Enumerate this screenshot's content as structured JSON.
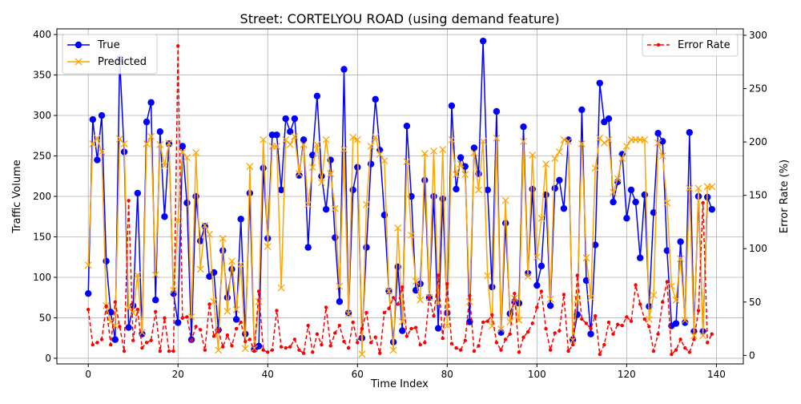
{
  "chart_data": {
    "type": "line",
    "title": "Street: CORTELYOU ROAD (using demand feature)",
    "xlabel": "Time Index",
    "ylabel": "Traffic Volume",
    "y2label": "Error Rate (%)",
    "xlim": [
      -7,
      146
    ],
    "ylim": [
      -7,
      407
    ],
    "y2lim": [
      -8,
      306
    ],
    "xticks": [
      0,
      20,
      40,
      60,
      80,
      100,
      120,
      140
    ],
    "yticks": [
      0,
      50,
      100,
      150,
      200,
      250,
      300,
      350,
      400
    ],
    "y2ticks": [
      0,
      50,
      100,
      150,
      200,
      250,
      300
    ],
    "grid": true,
    "legend_left_position": "upper-left",
    "legend_right_position": "upper-right",
    "colors": {
      "true": "#0000ff",
      "predicted": "#ffa500",
      "error": "#ff0000",
      "grid": "#b0b0b0"
    },
    "series": [
      {
        "name": "True",
        "axis": "left",
        "color": "#0000ff",
        "marker": "circle",
        "values": [
          80,
          295,
          245,
          300,
          120,
          57,
          23,
          370,
          255,
          38,
          65,
          204,
          30,
          292,
          316,
          72,
          280,
          175,
          265,
          80,
          44,
          262,
          192,
          23,
          200,
          145,
          163,
          101,
          106,
          35,
          133,
          75,
          110,
          48,
          172,
          30,
          204,
          11,
          15,
          235,
          148,
          276,
          276,
          208,
          296,
          280,
          296,
          226,
          270,
          137,
          251,
          324,
          225,
          184,
          245,
          149,
          70,
          357,
          56,
          208,
          236,
          25,
          137,
          240,
          320,
          257,
          177,
          83,
          20,
          113,
          34,
          287,
          200,
          84,
          92,
          220,
          75,
          200,
          37,
          197,
          56,
          312,
          209,
          248,
          237,
          45,
          260,
          228,
          392,
          208,
          88,
          305,
          32,
          167,
          55,
          70,
          68,
          286,
          105,
          209,
          90,
          114,
          202,
          65,
          210,
          220,
          185,
          270,
          23,
          54,
          307,
          96,
          30,
          140,
          340,
          292,
          296,
          193,
          218,
          252,
          173,
          208,
          193,
          124,
          202,
          64,
          180,
          278,
          268,
          133,
          40,
          43,
          144,
          44,
          279,
          33,
          200,
          33,
          199,
          184
        ]
      },
      {
        "name": "Predicted",
        "axis": "left",
        "color": "#ffa500",
        "marker": "x",
        "values": [
          115,
          265,
          272,
          255,
          65,
          45,
          40,
          271,
          265,
          62,
          56,
          103,
          32,
          265,
          274,
          103,
          264,
          238,
          266,
          84,
          170,
          255,
          248,
          51,
          254,
          110,
          164,
          153,
          70,
          10,
          148,
          58,
          120,
          60,
          116,
          12,
          237,
          12,
          70,
          270,
          138,
          262,
          262,
          87,
          270,
          264,
          274,
          228,
          264,
          190,
          236,
          264,
          217,
          270,
          228,
          185,
          89,
          258,
          55,
          273,
          270,
          5,
          190,
          262,
          273,
          252,
          244,
          83,
          10,
          161,
          45,
          243,
          152,
          95,
          72,
          253,
          75,
          256,
          68,
          258,
          40,
          270,
          227,
          240,
          227,
          70,
          254,
          208,
          268,
          102,
          40,
          272,
          36,
          195,
          45,
          74,
          47,
          268,
          101,
          251,
          125,
          173,
          240,
          73,
          247,
          255,
          270,
          268,
          22,
          73,
          265,
          124,
          75,
          235,
          272,
          266,
          270,
          205,
          222,
          247,
          262,
          270,
          270,
          270,
          270,
          48,
          78,
          266,
          250,
          192,
          89,
          72,
          123,
          47,
          210,
          28,
          210,
          28,
          212,
          212
        ]
      },
      {
        "name": "Error Rate",
        "axis": "right",
        "color": "#ff0000",
        "marker": "dot",
        "values": [
          43,
          10,
          12,
          15,
          46,
          10,
          50,
          27,
          4,
          145,
          14,
          43,
          7,
          12,
          14,
          41,
          4,
          35,
          4,
          4,
          290,
          35,
          36,
          14,
          27,
          24,
          5,
          48,
          18,
          24,
          8,
          19,
          9,
          25,
          31,
          13,
          15,
          4,
          60,
          5,
          3,
          5,
          42,
          8,
          7,
          8,
          15,
          5,
          2,
          28,
          3,
          20,
          10,
          45,
          9,
          21,
          28,
          13,
          7,
          31,
          12,
          25,
          40,
          12,
          17,
          2,
          40,
          44,
          54,
          48,
          64,
          18,
          25,
          26,
          10,
          12,
          54,
          37,
          75,
          16,
          67,
          11,
          7,
          5,
          14,
          56,
          4,
          9,
          31,
          32,
          38,
          12,
          5,
          15,
          20,
          58,
          3,
          17,
          22,
          30,
          45,
          60,
          25,
          5,
          21,
          23,
          57,
          4,
          10,
          75,
          34,
          30,
          25,
          37,
          1,
          10,
          31,
          20,
          29,
          28,
          36,
          32,
          66,
          48,
          34,
          27,
          4,
          20,
          50,
          69,
          1,
          5,
          15,
          7,
          3,
          15,
          42,
          143,
          12,
          20
        ]
      }
    ]
  }
}
